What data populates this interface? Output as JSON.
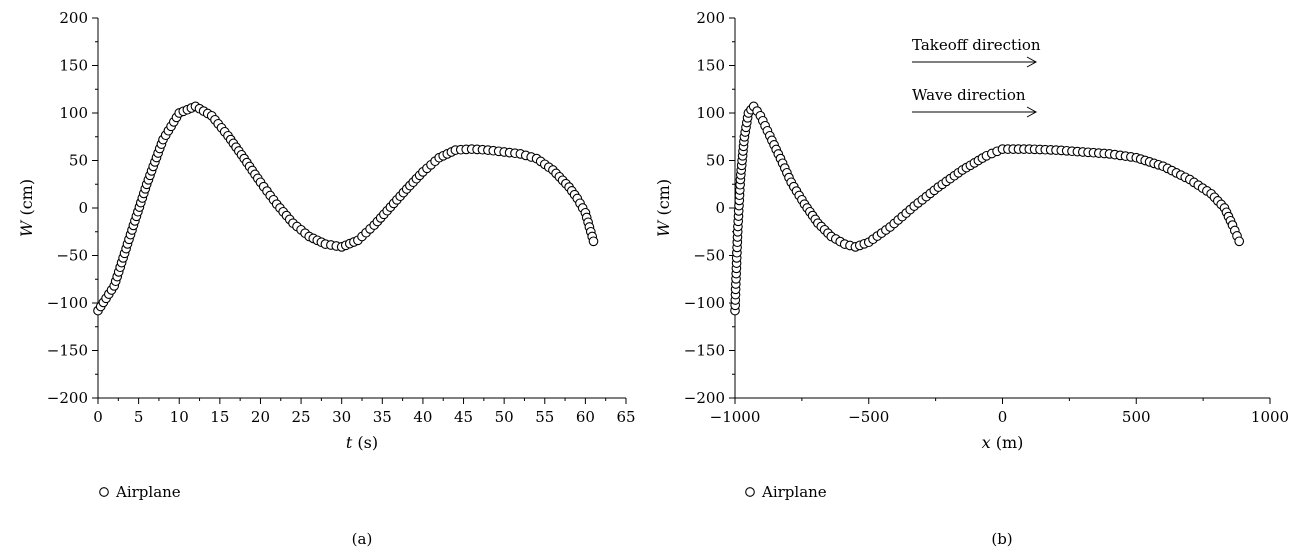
{
  "chart_data": [
    {
      "type": "scatter",
      "panel_caption": "(a)",
      "xlabel_var": "t",
      "xlabel_unit": " (s)",
      "ylabel_var": "W",
      "ylabel_unit": " (cm)",
      "xlim": [
        0,
        65
      ],
      "ylim": [
        -200,
        200
      ],
      "xticks": [
        0,
        5,
        10,
        15,
        20,
        25,
        30,
        35,
        40,
        45,
        50,
        55,
        60,
        65
      ],
      "yticks": [
        -200,
        -150,
        -100,
        -50,
        0,
        50,
        100,
        150,
        200
      ],
      "legend": "Airplane",
      "legend_position": "below-left",
      "grid": false,
      "series": [
        {
          "name": "Airplane",
          "marker": "open-circle",
          "curve": [
            [
              0,
              -108
            ],
            [
              2,
              -82
            ],
            [
              4,
              -28
            ],
            [
              6,
              25
            ],
            [
              8,
              72
            ],
            [
              10,
              100
            ],
            [
              12,
              107
            ],
            [
              14,
              97
            ],
            [
              16,
              76
            ],
            [
              18,
              52
            ],
            [
              20,
              27
            ],
            [
              22,
              4
            ],
            [
              24,
              -16
            ],
            [
              26,
              -30
            ],
            [
              28,
              -38
            ],
            [
              30,
              -41
            ],
            [
              32,
              -34
            ],
            [
              34,
              -18
            ],
            [
              36,
              1
            ],
            [
              38,
              20
            ],
            [
              40,
              38
            ],
            [
              42,
              53
            ],
            [
              44,
              61
            ],
            [
              46,
              62
            ],
            [
              48,
              61
            ],
            [
              50,
              59
            ],
            [
              52,
              57
            ],
            [
              54,
              52
            ],
            [
              56,
              40
            ],
            [
              58,
              22
            ],
            [
              59,
              10
            ],
            [
              60,
              -5
            ],
            [
              60.5,
              -20
            ],
            [
              61,
              -35
            ]
          ]
        }
      ]
    },
    {
      "type": "scatter",
      "panel_caption": "(b)",
      "xlabel_var": "x",
      "xlabel_unit": " (m)",
      "ylabel_var": "W",
      "ylabel_unit": " (cm)",
      "xlim": [
        -1000,
        1000
      ],
      "ylim": [
        -200,
        200
      ],
      "xticks": [
        -1000,
        -500,
        0,
        500,
        1000
      ],
      "yticks": [
        -200,
        -150,
        -100,
        -50,
        0,
        50,
        100,
        150,
        200
      ],
      "legend": "Airplane",
      "legend_position": "below-left",
      "grid": false,
      "annotations": [
        {
          "text": "Takeoff direction",
          "arrow": "right"
        },
        {
          "text": "Wave direction",
          "arrow": "right"
        }
      ],
      "series": [
        {
          "name": "Airplane",
          "marker": "open-circle",
          "curve": [
            [
              -1000,
              -108
            ],
            [
              -997,
              -80
            ],
            [
              -990,
              -25
            ],
            [
              -980,
              30
            ],
            [
              -965,
              75
            ],
            [
              -950,
              100
            ],
            [
              -930,
              107
            ],
            [
              -905,
              97
            ],
            [
              -870,
              76
            ],
            [
              -830,
              52
            ],
            [
              -790,
              27
            ],
            [
              -740,
              4
            ],
            [
              -690,
              -16
            ],
            [
              -640,
              -30
            ],
            [
              -590,
              -38
            ],
            [
              -550,
              -41
            ],
            [
              -500,
              -36
            ],
            [
              -420,
              -20
            ],
            [
              -330,
              2
            ],
            [
              -240,
              22
            ],
            [
              -150,
              40
            ],
            [
              -60,
              55
            ],
            [
              0,
              62
            ],
            [
              100,
              62
            ],
            [
              200,
              61
            ],
            [
              300,
              59
            ],
            [
              400,
              57
            ],
            [
              500,
              53
            ],
            [
              600,
              44
            ],
            [
              700,
              30
            ],
            [
              780,
              15
            ],
            [
              830,
              0
            ],
            [
              860,
              -18
            ],
            [
              885,
              -35
            ]
          ]
        }
      ]
    }
  ]
}
